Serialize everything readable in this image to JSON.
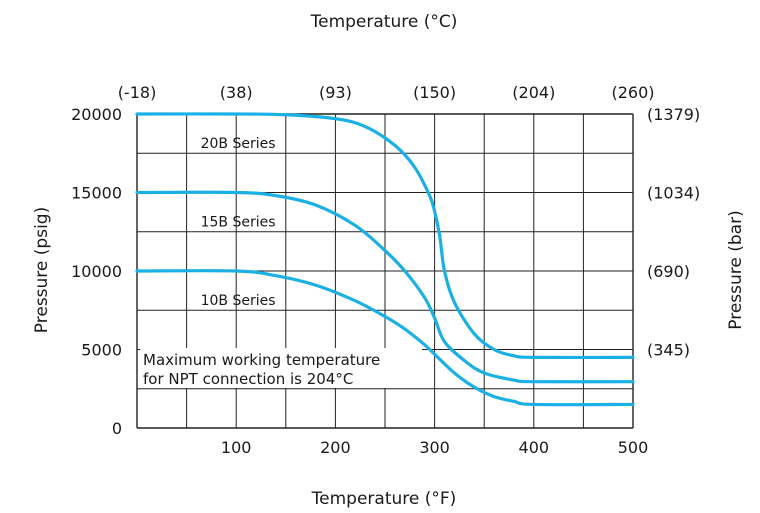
{
  "chart_data": {
    "type": "line",
    "title": "Temperature (°C)",
    "xlabel": "Temperature (°F)",
    "ylabel": "Pressure (psig)",
    "y2label": "Pressure (bar)",
    "xlim": [
      0,
      500
    ],
    "ylim": [
      0,
      20000
    ],
    "grid": true,
    "x_ticks": [
      100,
      200,
      300,
      400,
      500
    ],
    "x_tick_labels": [
      "100",
      "200",
      "300",
      "400",
      "500"
    ],
    "y_ticks": [
      0,
      5000,
      10000,
      15000,
      20000
    ],
    "y_tick_labels": [
      "0",
      "5000",
      "10000",
      "15000",
      "20000"
    ],
    "x2_ticks": [
      0,
      100,
      200,
      300,
      400,
      500
    ],
    "x2_tick_labels": [
      "(-18)",
      "(38)",
      "(93)",
      "(150)",
      "(204)",
      "(260)"
    ],
    "y2_ticks": [
      5000,
      10000,
      15000,
      20000
    ],
    "y2_tick_labels": [
      "(345)",
      "(690)",
      "(1034)",
      "(1379)"
    ],
    "series": [
      {
        "name": "20B Series",
        "color": "#1ab0e6",
        "points": [
          [
            0,
            20000
          ],
          [
            100,
            20000
          ],
          [
            150,
            19950
          ],
          [
            200,
            19700
          ],
          [
            230,
            19200
          ],
          [
            260,
            18000
          ],
          [
            280,
            16600
          ],
          [
            295,
            14800
          ],
          [
            300,
            13800
          ],
          [
            305,
            12300
          ],
          [
            310,
            10000
          ],
          [
            320,
            8000
          ],
          [
            340,
            6000
          ],
          [
            360,
            5000
          ],
          [
            380,
            4600
          ],
          [
            400,
            4500
          ],
          [
            500,
            4500
          ]
        ]
      },
      {
        "name": "15B Series",
        "color": "#1ab0e6",
        "points": [
          [
            0,
            15000
          ],
          [
            100,
            15000
          ],
          [
            140,
            14800
          ],
          [
            180,
            14200
          ],
          [
            220,
            12900
          ],
          [
            250,
            11300
          ],
          [
            270,
            10000
          ],
          [
            290,
            8300
          ],
          [
            300,
            7000
          ],
          [
            310,
            5500
          ],
          [
            330,
            4300
          ],
          [
            350,
            3500
          ],
          [
            380,
            3050
          ],
          [
            400,
            2950
          ],
          [
            500,
            2950
          ]
        ]
      },
      {
        "name": "10B Series",
        "color": "#1ab0e6",
        "points": [
          [
            0,
            10000
          ],
          [
            100,
            10000
          ],
          [
            140,
            9700
          ],
          [
            180,
            9100
          ],
          [
            220,
            8100
          ],
          [
            250,
            7100
          ],
          [
            270,
            6300
          ],
          [
            290,
            5300
          ],
          [
            300,
            4700
          ],
          [
            320,
            3500
          ],
          [
            340,
            2600
          ],
          [
            360,
            2000
          ],
          [
            380,
            1700
          ],
          [
            400,
            1500
          ],
          [
            500,
            1500
          ]
        ]
      }
    ],
    "annotations": [
      "Maximum working temperature",
      "for NPT connection is 204°C"
    ]
  }
}
